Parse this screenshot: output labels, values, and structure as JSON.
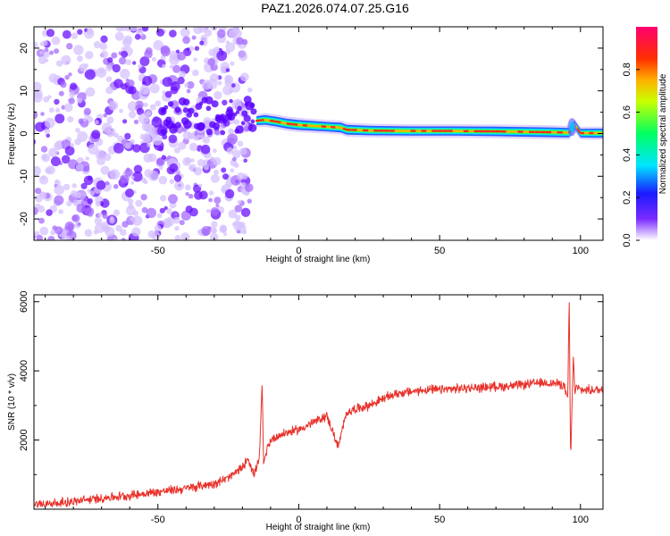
{
  "title": "PAZ1.2026.074.07.25.G16",
  "colors": {
    "snr_line": "#e8312a",
    "bg": "#ffffff",
    "colorbar_stops": [
      "#ffffff",
      "#6a00ff",
      "#0040ff",
      "#00e5ff",
      "#00ff60",
      "#ffff00",
      "#ff3a00",
      "#ff0060"
    ]
  },
  "chart_data": [
    {
      "type": "heatmap",
      "title": "",
      "xlabel": "Height of straight line (km)",
      "ylabel": "Frequency (Hz)",
      "xlim": [
        -94,
        108
      ],
      "ylim": [
        -25,
        25
      ],
      "x_ticks": [
        -50,
        0,
        50,
        100
      ],
      "y_ticks": [
        -20,
        -10,
        0,
        10,
        20
      ],
      "x_tick_labels": [
        "-50",
        "0",
        "50",
        "100"
      ],
      "y_tick_labels": [
        "-20",
        "-10",
        "0",
        "10",
        "20"
      ],
      "noise_region_x": [
        -94,
        -18
      ],
      "ridge": {
        "x": [
          -15,
          -12,
          -8,
          -4,
          0,
          5,
          10,
          15,
          17,
          25,
          40,
          55,
          70,
          80,
          90,
          96,
          98,
          100,
          105,
          108
        ],
        "freq": [
          3.0,
          3.2,
          2.8,
          2.3,
          2.0,
          1.8,
          1.6,
          1.4,
          0.9,
          0.7,
          0.6,
          0.6,
          0.5,
          0.4,
          0.3,
          0.2,
          2.0,
          0.1,
          0.1,
          0.1
        ],
        "amplitude": [
          0.7,
          0.9,
          0.95,
          1.0,
          1.0,
          0.95,
          0.9,
          0.95,
          0.95,
          0.9,
          0.85,
          0.85,
          0.9,
          0.95,
          0.95,
          0.9,
          0.6,
          0.7,
          0.8,
          0.8
        ]
      },
      "colorbar": {
        "label": "Normalized spectral amplitude",
        "range": [
          0,
          1
        ],
        "ticks": [
          0.0,
          0.2,
          0.4,
          0.6,
          0.8
        ],
        "tick_labels": [
          "0.0",
          "0.2",
          "0.4",
          "0.6",
          "0.8"
        ]
      }
    },
    {
      "type": "line",
      "title": "",
      "xlabel": "Height of straight line (km)",
      "ylabel": "SNR (10 * v/v)",
      "xlim": [
        -94,
        108
      ],
      "ylim": [
        0,
        6200
      ],
      "x_ticks": [
        -50,
        0,
        50,
        100
      ],
      "y_ticks": [
        2000,
        4000,
        6000
      ],
      "x_tick_labels": [
        "-50",
        "0",
        "50",
        "100"
      ],
      "y_tick_labels": [
        "2000",
        "4000",
        "6000"
      ],
      "series": [
        {
          "name": "SNR",
          "x": [
            -94,
            -80,
            -70,
            -60,
            -50,
            -40,
            -30,
            -25,
            -20,
            -18,
            -16,
            -14,
            -13,
            -12.5,
            -12,
            -11,
            -10,
            -8,
            -5,
            0,
            5,
            10,
            14,
            17,
            20,
            25,
            30,
            35,
            40,
            45,
            50,
            55,
            60,
            65,
            70,
            75,
            80,
            85,
            90,
            94,
            95.5,
            96,
            96.5,
            97,
            97.5,
            98,
            98.5,
            99,
            100,
            103,
            106,
            108
          ],
          "y": [
            150,
            220,
            320,
            400,
            500,
            600,
            750,
            900,
            1200,
            1500,
            1000,
            1400,
            3700,
            1300,
            1500,
            1800,
            2000,
            2100,
            2200,
            2300,
            2500,
            2700,
            1800,
            2800,
            2900,
            3000,
            3200,
            3350,
            3400,
            3450,
            3450,
            3480,
            3500,
            3520,
            3550,
            3560,
            3600,
            3650,
            3650,
            3600,
            3200,
            6200,
            1400,
            3000,
            4500,
            3300,
            3600,
            3500,
            3450,
            3450,
            3450,
            3450
          ]
        }
      ],
      "noise_amplitude": 160
    }
  ]
}
